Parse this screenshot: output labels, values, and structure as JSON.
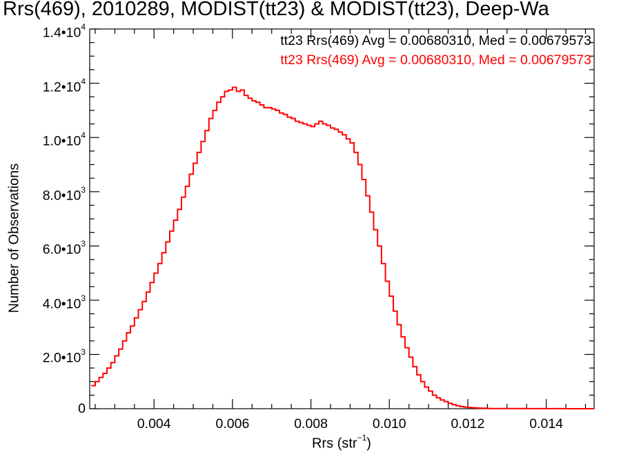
{
  "title": "Rrs(469), 2010289, MODIST(tt23) & MODIST(tt23), Deep-Wa",
  "stats": [
    {
      "text": "tt23 Rrs(469) Avg = 0.00680310, Med = 0.00679573",
      "color": "#000000"
    },
    {
      "text": "tt23 Rrs(469) Avg = 0.00680310, Med = 0.00679573",
      "color": "#ff0000"
    }
  ],
  "axes": {
    "ylabel": "Number of Observations",
    "xlabel_base": "Rrs (str",
    "xlabel_exp": "−1",
    "xlabel_close": ")",
    "yticks": [
      {
        "value": 0,
        "mant": "0",
        "base": "",
        "exp": ""
      },
      {
        "value": 2000,
        "mant": "2.0•",
        "base": "10",
        "exp": "3"
      },
      {
        "value": 4000,
        "mant": "4.0•",
        "base": "10",
        "exp": "3"
      },
      {
        "value": 6000,
        "mant": "6.0•",
        "base": "10",
        "exp": "3"
      },
      {
        "value": 8000,
        "mant": "8.0•",
        "base": "10",
        "exp": "3"
      },
      {
        "value": 10000,
        "mant": "1.0•",
        "base": "10",
        "exp": "4"
      },
      {
        "value": 12000,
        "mant": "1.2•",
        "base": "10",
        "exp": "4"
      },
      {
        "value": 14000,
        "mant": "1.4•",
        "base": "10",
        "exp": "4"
      }
    ],
    "xticks": [
      {
        "value": 0.004,
        "label": "0.004"
      },
      {
        "value": 0.006,
        "label": "0.006"
      },
      {
        "value": 0.008,
        "label": "0.008"
      },
      {
        "value": 0.01,
        "label": "0.010"
      },
      {
        "value": 0.012,
        "label": "0.012"
      },
      {
        "value": 0.014,
        "label": "0.014"
      }
    ]
  },
  "chart_data": {
    "type": "line",
    "step": true,
    "xlim": [
      0.00236,
      0.01522
    ],
    "ylim": [
      0,
      14000
    ],
    "series": [
      {
        "color": "#ff0000",
        "x": [
          0.0024,
          0.0025,
          0.0026,
          0.0027,
          0.0028,
          0.0029,
          0.003,
          0.0031,
          0.0032,
          0.0033,
          0.0034,
          0.0035,
          0.0036,
          0.0037,
          0.0038,
          0.0039,
          0.004,
          0.0041,
          0.0042,
          0.0043,
          0.0044,
          0.0045,
          0.0046,
          0.0047,
          0.0048,
          0.0049,
          0.005,
          0.0051,
          0.0052,
          0.0053,
          0.0054,
          0.0055,
          0.0056,
          0.0057,
          0.0058,
          0.0059,
          0.006,
          0.0061,
          0.0062,
          0.0063,
          0.0064,
          0.0065,
          0.0066,
          0.0067,
          0.0068,
          0.0069,
          0.007,
          0.0071,
          0.0072,
          0.0073,
          0.0074,
          0.0075,
          0.0076,
          0.0077,
          0.0078,
          0.0079,
          0.008,
          0.0081,
          0.0082,
          0.0083,
          0.0084,
          0.0085,
          0.0086,
          0.0087,
          0.0088,
          0.0089,
          0.009,
          0.0091,
          0.0092,
          0.0093,
          0.0094,
          0.0095,
          0.0096,
          0.0097,
          0.0098,
          0.0099,
          0.01,
          0.0101,
          0.0102,
          0.0103,
          0.0104,
          0.0105,
          0.0106,
          0.0107,
          0.0108,
          0.0109,
          0.011,
          0.0111,
          0.0112,
          0.0113,
          0.0114,
          0.0115,
          0.0116,
          0.0117,
          0.0118,
          0.0119,
          0.012,
          0.0121,
          0.0122,
          0.0123,
          0.0124,
          0.0125,
          0.0126,
          0.0127,
          0.0128,
          0.013,
          0.0135,
          0.014,
          0.0145,
          0.015,
          0.0152
        ],
        "values": [
          850,
          1000,
          1150,
          1300,
          1500,
          1700,
          1950,
          2200,
          2500,
          2800,
          3050,
          3350,
          3650,
          3950,
          4300,
          4650,
          5000,
          5350,
          5750,
          6150,
          6550,
          6950,
          7350,
          7800,
          8200,
          8650,
          9050,
          9450,
          9850,
          10250,
          10700,
          11000,
          11300,
          11500,
          11700,
          11750,
          11850,
          11700,
          11750,
          11550,
          11450,
          11350,
          11300,
          11200,
          11100,
          11100,
          11050,
          11000,
          10900,
          10850,
          10750,
          10700,
          10600,
          10550,
          10500,
          10450,
          10400,
          10500,
          10600,
          10500,
          10450,
          10350,
          10300,
          10200,
          10100,
          9950,
          9800,
          9450,
          9000,
          8450,
          7850,
          7250,
          6600,
          6000,
          5350,
          4700,
          4150,
          3600,
          3100,
          2650,
          2250,
          1900,
          1550,
          1250,
          1000,
          800,
          650,
          500,
          400,
          320,
          260,
          200,
          150,
          110,
          80,
          60,
          45,
          35,
          25,
          20,
          15,
          10,
          8,
          6,
          5,
          4,
          3,
          2,
          1,
          0,
          0
        ]
      }
    ]
  }
}
